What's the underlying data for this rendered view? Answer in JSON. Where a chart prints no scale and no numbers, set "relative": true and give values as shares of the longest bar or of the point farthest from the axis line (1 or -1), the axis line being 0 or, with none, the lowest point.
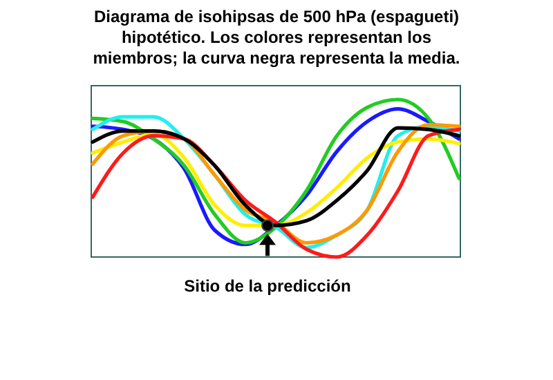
{
  "chart_data": {
    "type": "line",
    "title": "Diagrama de isohipsas de 500 hPa (espagueti) hipotético. Los colores representan los miembros; la curva negra representa la media.",
    "relative": true,
    "line_style": "solid",
    "categories": [
      null,
      null,
      null,
      null,
      null,
      null,
      null,
      null,
      null,
      null,
      null,
      null,
      null
    ],
    "series": [
      {
        "color": "#1a1aff",
        "values": [
          0.83,
          0.81,
          0.75,
          0.56,
          0.17,
          0.08,
          0.2,
          0.39,
          0.67,
          0.86,
          0.94,
          0.86,
          0.75
        ]
      },
      {
        "color": "#22cc22",
        "values": [
          0.88,
          0.86,
          0.75,
          0.58,
          0.27,
          0.09,
          0.19,
          0.42,
          0.77,
          0.95,
          1,
          0.88,
          0.5
        ]
      },
      {
        "color": "#22eeee",
        "values": [
          0.81,
          0.89,
          0.89,
          0.75,
          0.52,
          0.27,
          0.19,
          0.06,
          0.14,
          0.3,
          0.77,
          0.83,
          0.8
        ]
      },
      {
        "color": "#ffee00",
        "values": [
          0.66,
          0.73,
          0.78,
          0.63,
          0.33,
          0.2,
          0.2,
          0.28,
          0.44,
          0.63,
          0.73,
          0.75,
          0.72
        ]
      },
      {
        "color": "#ff9900",
        "values": [
          0.59,
          0.77,
          0.8,
          0.75,
          0.52,
          0.3,
          0.22,
          0.09,
          0.14,
          0.3,
          0.67,
          0.84,
          0.83
        ]
      },
      {
        "color": "#ff1a1a",
        "values": [
          0.38,
          0.66,
          0.77,
          0.75,
          0.58,
          0.36,
          0.22,
          0.05,
          0,
          0.14,
          0.42,
          0.77,
          0.81
        ]
      },
      {
        "color": "#000000",
        "values": [
          0.73,
          0.8,
          0.8,
          0.75,
          0.58,
          0.33,
          0.2,
          0.23,
          0.36,
          0.55,
          0.82,
          0.81,
          0.77
        ]
      }
    ],
    "annotations": [
      "Sitio de la predicción"
    ]
  }
}
